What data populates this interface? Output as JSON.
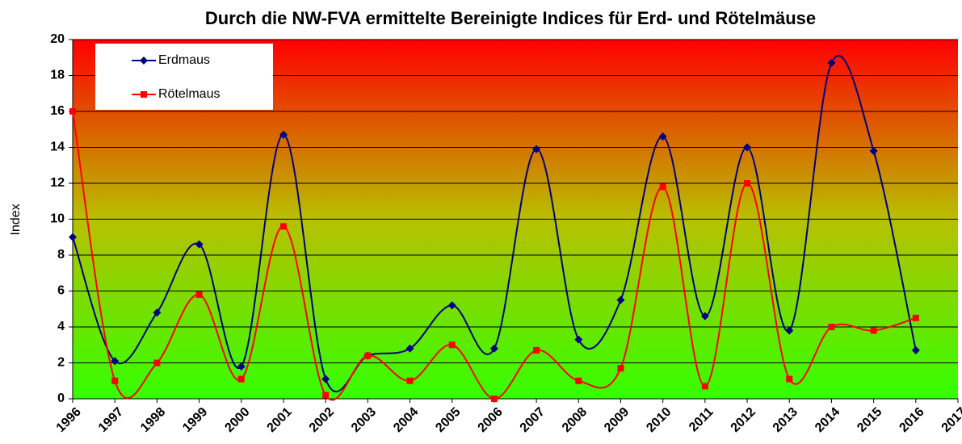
{
  "chart_data": {
    "type": "line",
    "title": "Durch die NW-FVA ermittelte Bereinigte Indices für Erd- und Rötelmäuse",
    "y_label": "Index",
    "x": [
      1996,
      1997,
      1998,
      1999,
      2000,
      2001,
      2002,
      2003,
      2004,
      2005,
      2006,
      2007,
      2008,
      2009,
      2010,
      2011,
      2012,
      2013,
      2014,
      2015,
      2016
    ],
    "series": [
      {
        "name": "Erdmaus",
        "color": "#000080",
        "marker": "diamond",
        "values": [
          9.0,
          2.1,
          4.8,
          8.6,
          1.8,
          14.7,
          1.1,
          2.4,
          2.8,
          5.2,
          2.8,
          13.9,
          3.3,
          5.5,
          14.6,
          4.6,
          14.0,
          3.8,
          18.7,
          13.8,
          2.7
        ]
      },
      {
        "name": "Rötelmaus",
        "color": "#ff0000",
        "marker": "square",
        "values": [
          16.0,
          1.0,
          2.0,
          5.8,
          1.1,
          9.6,
          0.2,
          2.4,
          1.0,
          3.0,
          0.0,
          2.7,
          1.0,
          1.7,
          11.8,
          0.7,
          12.0,
          1.1,
          4.0,
          3.8,
          4.5
        ]
      }
    ],
    "xlim": [
      1996,
      2017
    ],
    "xticks": [
      1996,
      1997,
      1998,
      1999,
      2000,
      2001,
      2002,
      2003,
      2004,
      2005,
      2006,
      2007,
      2008,
      2009,
      2010,
      2011,
      2012,
      2013,
      2014,
      2015,
      2016,
      2017
    ],
    "ylim": [
      0,
      20
    ],
    "yticks": [
      0,
      2,
      4,
      6,
      8,
      10,
      12,
      14,
      16,
      18,
      20
    ],
    "grid": true,
    "smooth": true,
    "legend": "upper left"
  }
}
